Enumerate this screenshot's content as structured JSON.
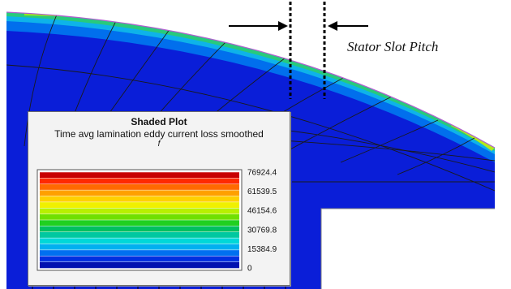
{
  "annotation": {
    "label": "Stator Slot Pitch"
  },
  "legend": {
    "title": "Shaded Plot",
    "subtitle": "Time avg lamination eddy current loss smoothed",
    "unit": "f"
  },
  "chart_data": {
    "type": "heatmap",
    "title": "Shaded Plot",
    "subtitle": "Time avg lamination eddy current loss smoothed",
    "unit": "f",
    "scale_min": 0,
    "scale_max": 76924.4,
    "tick_labels": [
      "76924.4",
      "61539.5",
      "46154.6",
      "30769.8",
      "15384.9",
      "0"
    ],
    "tick_values": [
      76924.4,
      61539.5,
      46154.6,
      30769.8,
      15384.9,
      0
    ],
    "colors": [
      "#c80000",
      "#ff2a00",
      "#ff6a00",
      "#ffa000",
      "#ffd000",
      "#f0f000",
      "#b8f000",
      "#70e000",
      "#20d020",
      "#00c060",
      "#00c8a0",
      "#00d8d8",
      "#00b0f0",
      "#0070f0",
      "#0030e0",
      "#0010b0"
    ]
  }
}
